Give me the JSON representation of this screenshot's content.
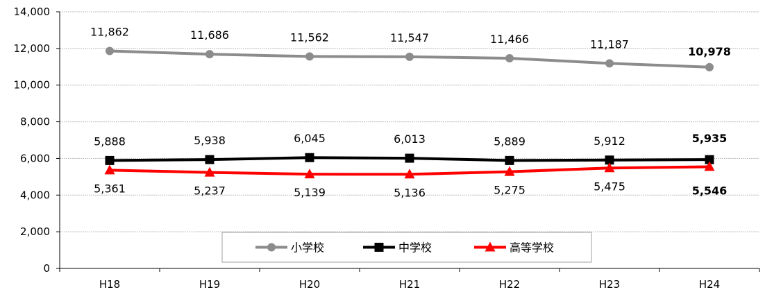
{
  "chart_data": {
    "type": "line",
    "categories": [
      "H18",
      "H19",
      "H20",
      "H21",
      "H22",
      "H23",
      "H24"
    ],
    "series": [
      {
        "name": "小学校",
        "values": [
          11862,
          11686,
          11562,
          11547,
          11466,
          11187,
          10978
        ],
        "color": "#8c8c8c",
        "marker": "circle",
        "labels": [
          "11,862",
          "11,686",
          "11,562",
          "11,547",
          "11,466",
          "11,187",
          "10,978"
        ]
      },
      {
        "name": "中学校",
        "values": [
          5888,
          5938,
          6045,
          6013,
          5889,
          5912,
          5935
        ],
        "color": "#000000",
        "marker": "square",
        "labels": [
          "5,888",
          "5,938",
          "6,045",
          "6,013",
          "5,889",
          "5,912",
          "5,935"
        ]
      },
      {
        "name": "高等学校",
        "values": [
          5361,
          5237,
          5139,
          5136,
          5275,
          5475,
          5546
        ],
        "color": "#ff0000",
        "marker": "triangle",
        "labels": [
          "5,361",
          "5,237",
          "5,139",
          "5,136",
          "5,275",
          "5,475",
          "5,546"
        ]
      }
    ],
    "ylim": [
      0,
      14000
    ],
    "yticks": [
      0,
      2000,
      4000,
      6000,
      8000,
      10000,
      12000,
      14000
    ],
    "ytick_labels": [
      "0",
      "2,000",
      "4,000",
      "6,000",
      "8,000",
      "10,000",
      "12,000",
      "14,000"
    ],
    "grid": "horizontal",
    "legend": "bottom-center",
    "title": "",
    "xlabel": "",
    "ylabel": ""
  }
}
